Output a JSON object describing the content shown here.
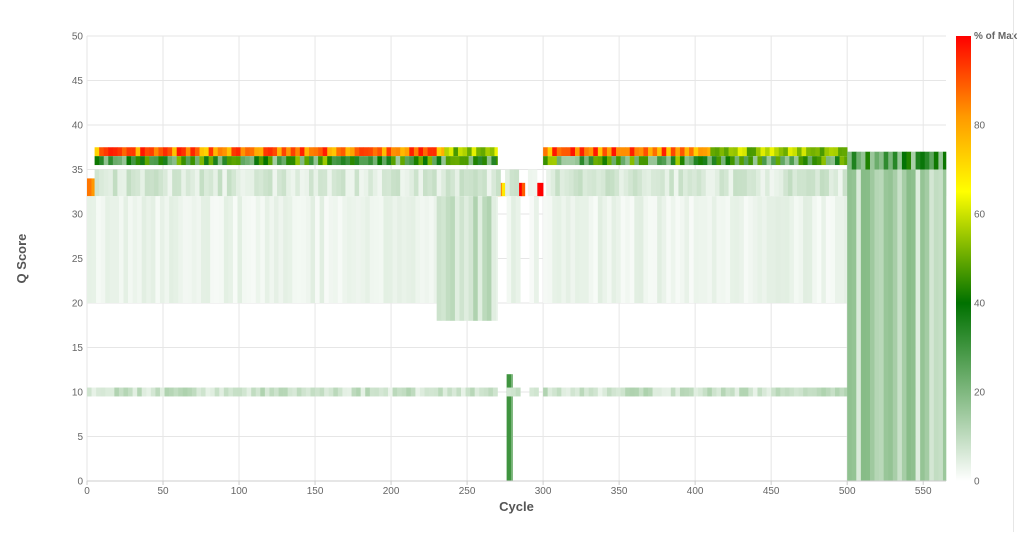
{
  "chart_data": {
    "type": "heatmap",
    "xlabel": "Cycle",
    "ylabel": "Q Score",
    "xlim": [
      0,
      565
    ],
    "ylim": [
      0,
      50
    ],
    "x_ticks": [
      "0",
      "50",
      "100",
      "150",
      "200",
      "250",
      "300",
      "350",
      "400",
      "450",
      "500",
      "550"
    ],
    "y_ticks": [
      "0",
      "5",
      "10",
      "15",
      "20",
      "25",
      "30",
      "35",
      "40",
      "45",
      "50"
    ],
    "grid": true,
    "colorbar": {
      "title": "% of Max",
      "ticks": [
        "0",
        "20",
        "40",
        "60",
        "80"
      ],
      "range": [
        0,
        100
      ],
      "colors": [
        "#ffffff",
        "#007100",
        "#ffff00",
        "#ff9900",
        "#ff0000"
      ]
    },
    "gap_cycles": [
      [
        271,
        276
      ],
      [
        285,
        290
      ],
      [
        297,
        301
      ]
    ],
    "value_bands": [
      {
        "cycles": [
          5,
          235
        ],
        "q": [
          36.5,
          37.5
        ],
        "percent": 85
      },
      {
        "cycles": [
          235,
          270
        ],
        "q": [
          36.5,
          37.5
        ],
        "percent": 55
      },
      {
        "cycles": [
          300,
          410
        ],
        "q": [
          36.5,
          37.5
        ],
        "percent": 85
      },
      {
        "cycles": [
          410,
          500
        ],
        "q": [
          36.5,
          37.5
        ],
        "percent": 55
      },
      {
        "cycles": [
          5,
          270
        ],
        "q": [
          35.5,
          36.5
        ],
        "percent": 35
      },
      {
        "cycles": [
          300,
          500
        ],
        "q": [
          35.5,
          36.5
        ],
        "percent": 35
      },
      {
        "cycles": [
          500,
          565
        ],
        "q": [
          35,
          37
        ],
        "percent": 30
      },
      {
        "cycles": [
          0,
          5
        ],
        "q": [
          32,
          34
        ],
        "percent": 95
      },
      {
        "cycles": [
          270,
          276
        ],
        "q": [
          32,
          33.5
        ],
        "percent": 80
      },
      {
        "cycles": [
          283,
          288
        ],
        "q": [
          32,
          33.5
        ],
        "percent": 95
      },
      {
        "cycles": [
          294,
          300
        ],
        "q": [
          32,
          33.5
        ],
        "percent": 95
      },
      {
        "cycles": [
          5,
          565
        ],
        "q": [
          32,
          35
        ],
        "percent": 6
      },
      {
        "cycles": [
          0,
          565
        ],
        "q": [
          20,
          32
        ],
        "percent": 3
      },
      {
        "cycles": [
          230,
          270
        ],
        "q": [
          18,
          32
        ],
        "percent": 8
      },
      {
        "cycles": [
          270,
          280
        ],
        "q": [
          0,
          12
        ],
        "percent": 25
      },
      {
        "cycles": [
          0,
          565
        ],
        "q": [
          9.5,
          10.5
        ],
        "percent": 8
      },
      {
        "cycles": [
          500,
          565
        ],
        "q": [
          0,
          35
        ],
        "percent": 12
      }
    ]
  }
}
